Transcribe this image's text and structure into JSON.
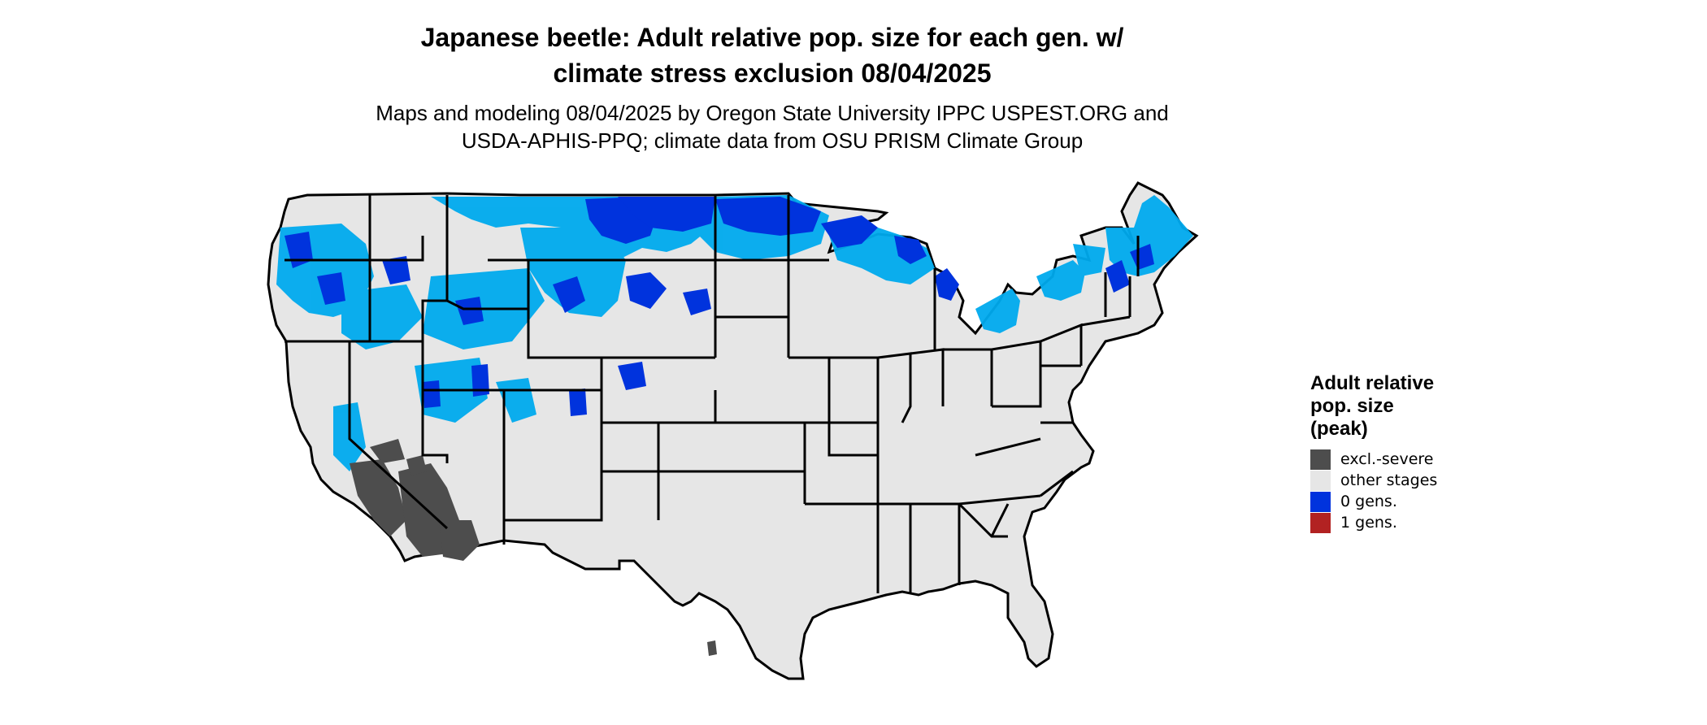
{
  "title": {
    "line1": "Japanese beetle: Adult relative pop. size for each gen. w/",
    "line2": "climate stress exclusion 08/04/2025"
  },
  "subtitle": {
    "line1": "Maps and modeling 08/04/2025 by Oregon State University IPPC USPEST.ORG and",
    "line2": "USDA-APHIS-PPQ; climate data from OSU PRISM Climate Group"
  },
  "legend": {
    "title_line1": "Adult relative",
    "title_line2": "pop. size",
    "title_line3": "(peak)",
    "items": [
      {
        "label": "excl.-severe",
        "color": "#4d4d4d"
      },
      {
        "label": "other stages",
        "color": "#e6e6e6"
      },
      {
        "label": "0 gens.",
        "color": "#0033dd"
      },
      {
        "label": "1 gens.",
        "color": "#b22222"
      }
    ]
  },
  "colors": {
    "background_land": "#e6e6e6",
    "state_borders": "#000000",
    "zero_gens_dark": "#0033dd",
    "zero_gens_light": "#00aaee",
    "excluded_severe": "#4d4d4d"
  }
}
